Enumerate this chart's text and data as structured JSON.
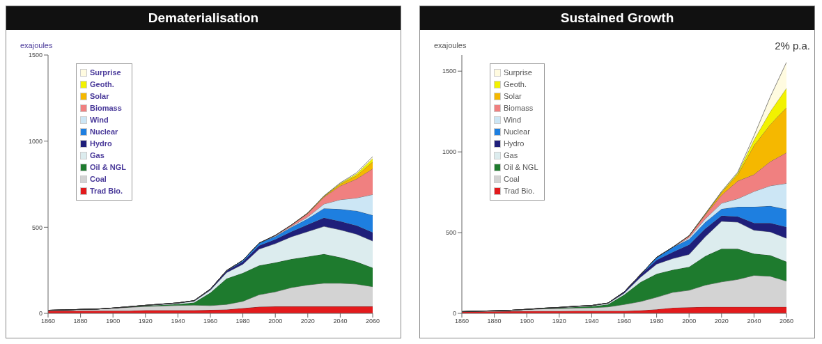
{
  "chart_data": [
    {
      "type": "area",
      "title": "Dematerialisation",
      "ylabel": "exajoules",
      "stacked": true,
      "legend": "top left",
      "x": [
        1860,
        1870,
        1880,
        1890,
        1900,
        1910,
        1920,
        1930,
        1940,
        1950,
        1960,
        1970,
        1980,
        1990,
        2000,
        2010,
        2020,
        2030,
        2040,
        2050,
        2060
      ],
      "xlim": [
        1860,
        2060
      ],
      "xticks": [
        1860,
        1880,
        1900,
        1920,
        1940,
        1960,
        1980,
        2000,
        2020,
        2040,
        2060
      ],
      "ylim": [
        0,
        1500
      ],
      "yticks": [
        0,
        500,
        1000,
        1500
      ],
      "series": [
        {
          "name": "Trad Bio.",
          "color": "#e31a1c",
          "values": [
            15,
            15,
            15,
            15,
            15,
            15,
            18,
            18,
            18,
            18,
            20,
            22,
            30,
            38,
            40,
            40,
            40,
            40,
            40,
            40,
            40
          ]
        },
        {
          "name": "Coal",
          "color": "#d3d3d3",
          "values": [
            3,
            5,
            8,
            10,
            15,
            20,
            22,
            25,
            28,
            30,
            25,
            30,
            40,
            70,
            85,
            110,
            125,
            135,
            135,
            130,
            115
          ]
        },
        {
          "name": "Oil & NGL",
          "color": "#1e7b2e",
          "values": [
            0,
            0,
            0,
            0,
            1,
            2,
            4,
            6,
            8,
            15,
            75,
            150,
            165,
            170,
            170,
            165,
            165,
            170,
            150,
            130,
            110
          ]
        },
        {
          "name": "Gas",
          "color": "#dcecee",
          "values": [
            0,
            0,
            0,
            0,
            0,
            1,
            2,
            3,
            5,
            8,
            15,
            35,
            50,
            95,
            110,
            130,
            145,
            160,
            160,
            160,
            155
          ]
        },
        {
          "name": "Hydro",
          "color": "#1f1f7a",
          "values": [
            0,
            0,
            0,
            0,
            0,
            1,
            1,
            2,
            2,
            3,
            6,
            10,
            15,
            20,
            25,
            30,
            40,
            50,
            50,
            50,
            50
          ]
        },
        {
          "name": "Nuclear",
          "color": "#1e7fe0",
          "values": [
            0,
            0,
            0,
            0,
            0,
            0,
            0,
            0,
            0,
            0,
            0,
            2,
            8,
            15,
            17,
            25,
            35,
            55,
            70,
            85,
            100
          ]
        },
        {
          "name": "Wind",
          "color": "#cce6f5",
          "values": [
            0,
            0,
            0,
            0,
            0,
            0,
            0,
            0,
            0,
            0,
            0,
            0,
            0,
            0,
            3,
            5,
            10,
            25,
            55,
            75,
            120
          ]
        },
        {
          "name": "Biomass",
          "color": "#f08080",
          "values": [
            0,
            0,
            0,
            0,
            0,
            0,
            0,
            0,
            0,
            0,
            0,
            0,
            0,
            0,
            3,
            8,
            20,
            40,
            80,
            110,
            150
          ]
        },
        {
          "name": "Solar",
          "color": "#f5b800",
          "values": [
            0,
            0,
            0,
            0,
            0,
            0,
            0,
            0,
            0,
            0,
            0,
            0,
            0,
            0,
            0,
            1,
            2,
            4,
            10,
            20,
            40
          ]
        },
        {
          "name": "Geoth.",
          "color": "#f2f200",
          "values": [
            0,
            0,
            0,
            0,
            0,
            0,
            0,
            0,
            0,
            0,
            0,
            0,
            0,
            0,
            0,
            0,
            1,
            2,
            5,
            10,
            20
          ]
        },
        {
          "name": "Surprise",
          "color": "#fffbe0",
          "values": [
            0,
            0,
            0,
            0,
            0,
            0,
            0,
            0,
            0,
            0,
            0,
            0,
            0,
            0,
            0,
            0,
            0,
            1,
            3,
            6,
            10
          ]
        }
      ]
    },
    {
      "type": "area",
      "title": "Sustained Growth",
      "ylabel": "exajoules",
      "stacked": true,
      "legend": "top left",
      "annotations": [
        "2% p.a."
      ],
      "x": [
        1860,
        1870,
        1880,
        1890,
        1900,
        1910,
        1920,
        1930,
        1940,
        1950,
        1960,
        1970,
        1980,
        1990,
        2000,
        2010,
        2020,
        2030,
        2040,
        2050,
        2060
      ],
      "xlim": [
        1860,
        2060
      ],
      "xticks": [
        1860,
        1880,
        1900,
        1920,
        1940,
        1960,
        1980,
        2000,
        2020,
        2040,
        2060
      ],
      "ylim": [
        0,
        1600
      ],
      "yticks": [
        0,
        500,
        1000,
        1500
      ],
      "series": [
        {
          "name": "Trad Bio.",
          "color": "#e31a1c",
          "values": [
            10,
            12,
            12,
            13,
            14,
            14,
            14,
            15,
            15,
            15,
            15,
            18,
            25,
            35,
            38,
            40,
            40,
            40,
            40,
            40,
            40
          ]
        },
        {
          "name": "Coal",
          "color": "#d3d3d3",
          "values": [
            1,
            2,
            4,
            6,
            10,
            14,
            16,
            18,
            20,
            25,
            40,
            55,
            75,
            95,
            105,
            135,
            155,
            170,
            195,
            190,
            160
          ]
        },
        {
          "name": "Oil & NGL",
          "color": "#1e7b2e",
          "values": [
            0,
            0,
            0,
            0,
            1,
            2,
            4,
            6,
            8,
            15,
            60,
            120,
            145,
            140,
            145,
            180,
            205,
            190,
            135,
            130,
            120
          ]
        },
        {
          "name": "Gas",
          "color": "#dcecee",
          "values": [
            0,
            0,
            0,
            0,
            0,
            1,
            2,
            3,
            4,
            6,
            10,
            30,
            60,
            70,
            77,
            120,
            170,
            165,
            145,
            145,
            145
          ]
        },
        {
          "name": "Hydro",
          "color": "#1f1f7a",
          "values": [
            0,
            0,
            0,
            0,
            0,
            1,
            1,
            2,
            2,
            3,
            8,
            15,
            25,
            40,
            60,
            50,
            35,
            35,
            45,
            55,
            70
          ]
        },
        {
          "name": "Nuclear",
          "color": "#1e7fe0",
          "values": [
            0,
            0,
            0,
            0,
            0,
            0,
            0,
            0,
            0,
            0,
            0,
            2,
            17,
            30,
            34,
            40,
            42,
            60,
            100,
            105,
            110
          ]
        },
        {
          "name": "Wind",
          "color": "#cce6f5",
          "values": [
            0,
            0,
            0,
            0,
            0,
            0,
            0,
            0,
            0,
            0,
            0,
            0,
            0,
            0,
            10,
            20,
            35,
            50,
            95,
            125,
            160
          ]
        },
        {
          "name": "Biomass",
          "color": "#f08080",
          "values": [
            0,
            0,
            0,
            0,
            0,
            0,
            0,
            0,
            0,
            0,
            0,
            0,
            0,
            0,
            10,
            25,
            50,
            110,
            105,
            150,
            190
          ]
        },
        {
          "name": "Solar",
          "color": "#f5b800",
          "values": [
            0,
            0,
            0,
            0,
            0,
            0,
            0,
            0,
            0,
            0,
            0,
            0,
            0,
            0,
            2,
            5,
            15,
            40,
            180,
            230,
            280
          ]
        },
        {
          "name": "Geoth.",
          "color": "#f2f200",
          "values": [
            0,
            0,
            0,
            0,
            0,
            0,
            0,
            0,
            0,
            0,
            0,
            0,
            0,
            0,
            0,
            1,
            5,
            10,
            35,
            80,
            120
          ]
        },
        {
          "name": "Surprise",
          "color": "#fffbe0",
          "values": [
            0,
            0,
            0,
            0,
            0,
            0,
            0,
            0,
            0,
            0,
            0,
            0,
            0,
            0,
            0,
            1,
            3,
            5,
            25,
            90,
            160
          ]
        }
      ]
    }
  ]
}
